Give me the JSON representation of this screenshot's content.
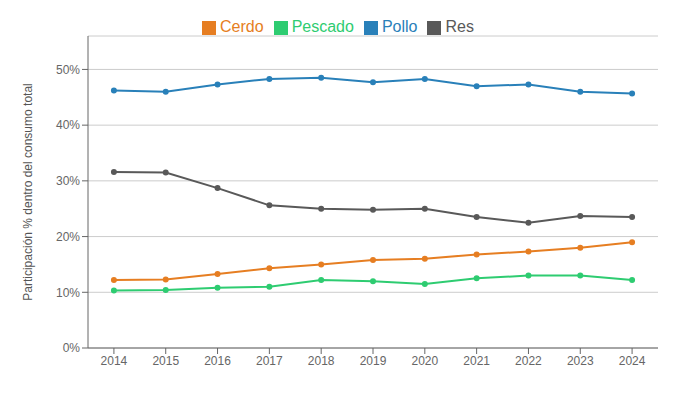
{
  "chart_data": {
    "type": "line",
    "x": [
      2014,
      2015,
      2016,
      2017,
      2018,
      2019,
      2020,
      2021,
      2022,
      2023,
      2024
    ],
    "series": [
      {
        "name": "Pescado",
        "color": "#2ecc71",
        "values": [
          0.103,
          0.104,
          0.108,
          0.11,
          0.122,
          0.12,
          0.115,
          0.125,
          0.13,
          0.13,
          0.122
        ]
      },
      {
        "name": "Cerdo",
        "color": "#e67e22",
        "values": [
          0.122,
          0.123,
          0.133,
          0.143,
          0.15,
          0.158,
          0.16,
          0.168,
          0.173,
          0.18,
          0.19
        ]
      },
      {
        "name": "Res",
        "color": "#595959",
        "values": [
          0.316,
          0.315,
          0.287,
          0.256,
          0.25,
          0.248,
          0.25,
          0.235,
          0.225,
          0.237,
          0.235
        ]
      },
      {
        "name": "Pollo",
        "color": "#2980b9",
        "values": [
          0.462,
          0.46,
          0.473,
          0.483,
          0.485,
          0.477,
          0.483,
          0.47,
          0.473,
          0.46,
          0.457
        ]
      }
    ],
    "ylabel": "Participación % dentro del consumo total",
    "ylim": [
      0,
      0.56
    ],
    "yticks": [
      {
        "value": 0,
        "label": "0%"
      },
      {
        "value": 0.1,
        "label": "10%"
      },
      {
        "value": 0.2,
        "label": "20%"
      },
      {
        "value": 0.3,
        "label": "30%"
      },
      {
        "value": 0.4,
        "label": "40%"
      },
      {
        "value": 0.5,
        "label": "50%"
      }
    ],
    "xlim": [
      2013.5,
      2024.5
    ],
    "xticks": [
      2014,
      2015,
      2016,
      2017,
      2018,
      2019,
      2020,
      2021,
      2022,
      2023,
      2024
    ],
    "grid": "y",
    "legend": "top",
    "marker": "dot"
  }
}
